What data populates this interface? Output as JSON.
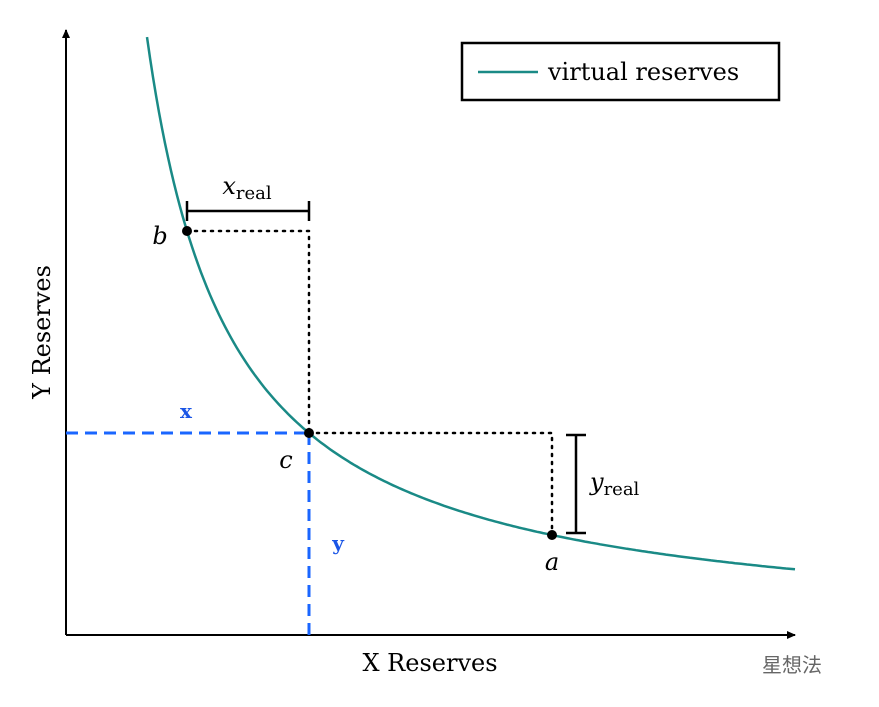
{
  "axes": {
    "x_label": "X Reserves",
    "y_label": "Y Reserves"
  },
  "legend": {
    "label": "virtual reserves"
  },
  "points": {
    "a": "a",
    "b": "b",
    "c": "c"
  },
  "brackets": {
    "x_real": {
      "symbol": "x",
      "subscript": "real"
    },
    "y_real": {
      "symbol": "y",
      "subscript": "real"
    }
  },
  "virtual": {
    "x": "x",
    "y": "y"
  },
  "watermark": "星想法"
}
